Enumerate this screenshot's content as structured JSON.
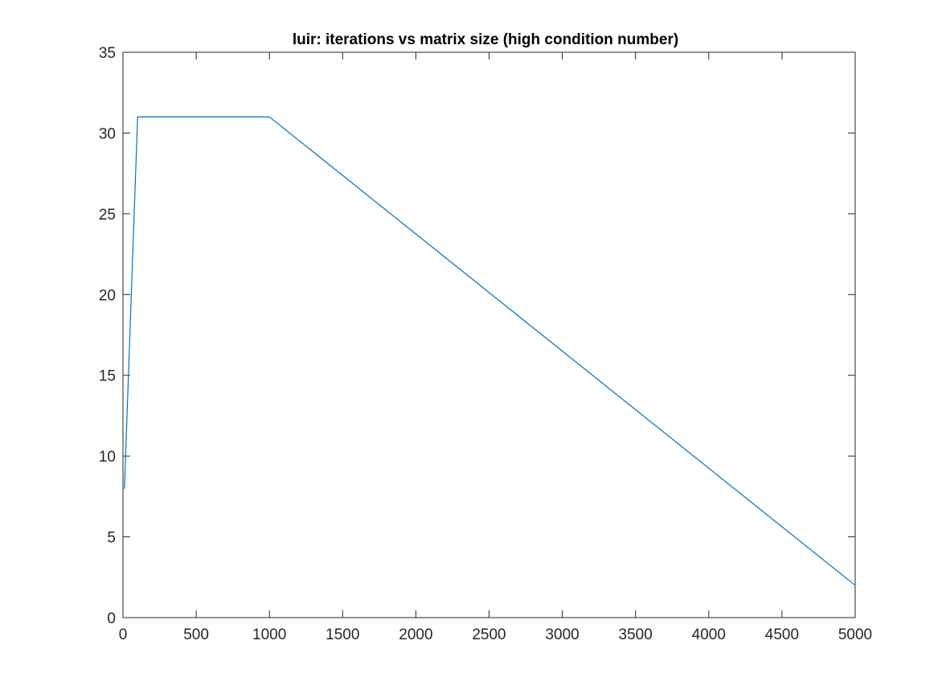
{
  "chart_data": {
    "type": "line",
    "title": "luir: iterations vs matrix size (high condition number)",
    "xlabel": "",
    "ylabel": "",
    "xlim": [
      0,
      5000
    ],
    "ylim": [
      0,
      35
    ],
    "xticks": [
      0,
      500,
      1000,
      1500,
      2000,
      2500,
      3000,
      3500,
      4000,
      4500,
      5000
    ],
    "yticks": [
      0,
      5,
      10,
      15,
      20,
      25,
      30,
      35
    ],
    "grid": false,
    "legend": false,
    "series": [
      {
        "color": "#0072BD",
        "x": [
          10,
          100,
          1000,
          5000
        ],
        "y": [
          8,
          31,
          31,
          2
        ]
      }
    ]
  }
}
